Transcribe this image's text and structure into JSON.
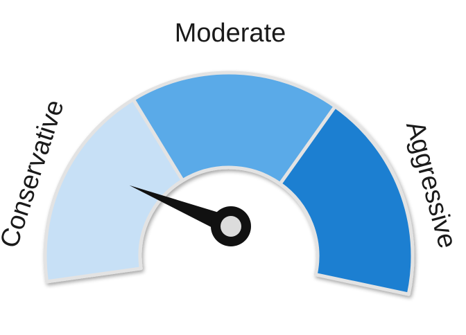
{
  "gauge": {
    "level": 0.15,
    "segments": [
      {
        "label": "Conservative",
        "color": "#c7e0f6"
      },
      {
        "label": "Moderate",
        "color": "#5aaae8"
      },
      {
        "label": "Aggressive",
        "color": "#1a7fd1"
      }
    ],
    "outline_color": "#e3e3e3",
    "needle_color": "#111111",
    "hub_color": "#dcdcdc"
  }
}
